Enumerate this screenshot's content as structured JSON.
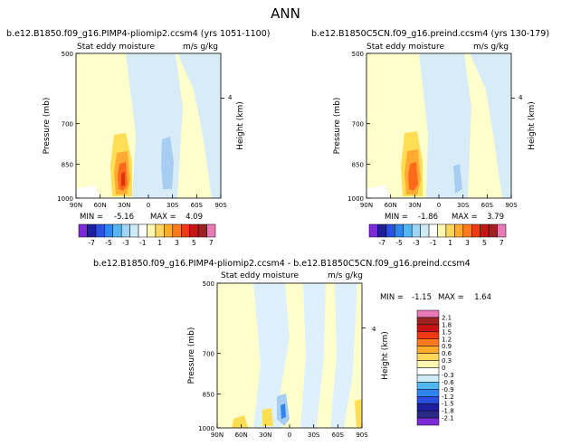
{
  "page_title": "ANN",
  "chart_data": [
    {
      "type": "heatmap",
      "title": "b.e12.B1850.f09_g16.PIMP4-pliomip2.ccsm4 (yrs 1051-1100)",
      "left_label": "Stat eddy moisture",
      "right_label": "m/s g/kg",
      "ylabel": "Pressure (mb)",
      "ylabel_right": "Height (km)",
      "right_tick": "4",
      "xticks": [
        "90N",
        "60N",
        "30N",
        "0",
        "30S",
        "60S",
        "90S"
      ],
      "yticks": [
        "500",
        "700",
        "850",
        "1000"
      ],
      "ylim": [
        1000,
        500
      ],
      "min_label": "MIN =",
      "min_value": "-5.16",
      "max_label": "MAX =",
      "max_value": "4.09"
    },
    {
      "type": "heatmap",
      "title": "b.e12.B1850C5CN.f09_g16.preind.ccsm4 (yrs 130-179)",
      "left_label": "Stat eddy moisture",
      "right_label": "m/s g/kg",
      "ylabel": "Pressure (mb)",
      "ylabel_right": "Height (km)",
      "right_tick": "4",
      "xticks": [
        "90N",
        "60N",
        "30N",
        "0",
        "30S",
        "60S",
        "90S"
      ],
      "yticks": [
        "500",
        "700",
        "850",
        "1000"
      ],
      "ylim": [
        1000,
        500
      ],
      "min_label": "MIN =",
      "min_value": "-1.86",
      "max_label": "MAX =",
      "max_value": "3.79"
    },
    {
      "type": "heatmap",
      "title": "b.e12.B1850.f09_g16.PIMP4-pliomip2.ccsm4 - b.e12.B1850C5CN.f09_g16.preind.ccsm4",
      "left_label": "Stat eddy moisture",
      "right_label": "m/s g/kg",
      "ylabel": "Pressure (mb)",
      "ylabel_right": "Height (km)",
      "right_tick": "4",
      "xticks": [
        "90N",
        "60N",
        "30N",
        "0",
        "30S",
        "60S",
        "90S"
      ],
      "yticks": [
        "500",
        "700",
        "850",
        "1000"
      ],
      "ylim": [
        1000,
        500
      ],
      "min_label": "MIN =",
      "min_value": "-1.15",
      "max_label": "MAX =",
      "max_value": "1.64"
    }
  ],
  "colorbar_top": {
    "labels": [
      "-7",
      "-5",
      "-3",
      "-1",
      "1",
      "3",
      "5",
      "7"
    ],
    "colors": [
      "#7d2bd8",
      "#1e1ea0",
      "#2b4fe0",
      "#2f86f0",
      "#52b6f2",
      "#a0d6f5",
      "#cfeaf7",
      "#ffffff",
      "#fff6b0",
      "#ffd65a",
      "#ffac2a",
      "#ff7a1c",
      "#f03a12",
      "#c81414",
      "#9e2222",
      "#e87ab8"
    ]
  },
  "colorbar_bottom": {
    "labels": [
      "2.1",
      "1.8",
      "1.5",
      "1.2",
      "0.9",
      "0.6",
      "0.3",
      "0",
      "-0.3",
      "-0.6",
      "-0.9",
      "-1.2",
      "-1.5",
      "-1.8",
      "-2.1"
    ],
    "colors": [
      "#e87ab8",
      "#9e2222",
      "#c81414",
      "#f03a12",
      "#ff7a1c",
      "#ffac2a",
      "#ffd65a",
      "#fff6b0",
      "#ffffff",
      "#cfeaf7",
      "#52b6f2",
      "#2f86f0",
      "#2b4fe0",
      "#1e1ea0",
      "#2a2a8a",
      "#7d2bd8"
    ]
  },
  "colors": {
    "pale_yellow": "#ffffcc",
    "pale_blue": "#d8ecf8",
    "light_blue": "#a8cdf2",
    "yellow": "#ffdd55",
    "orange": "#ff9933",
    "deep_orange": "#ff6a1a"
  }
}
